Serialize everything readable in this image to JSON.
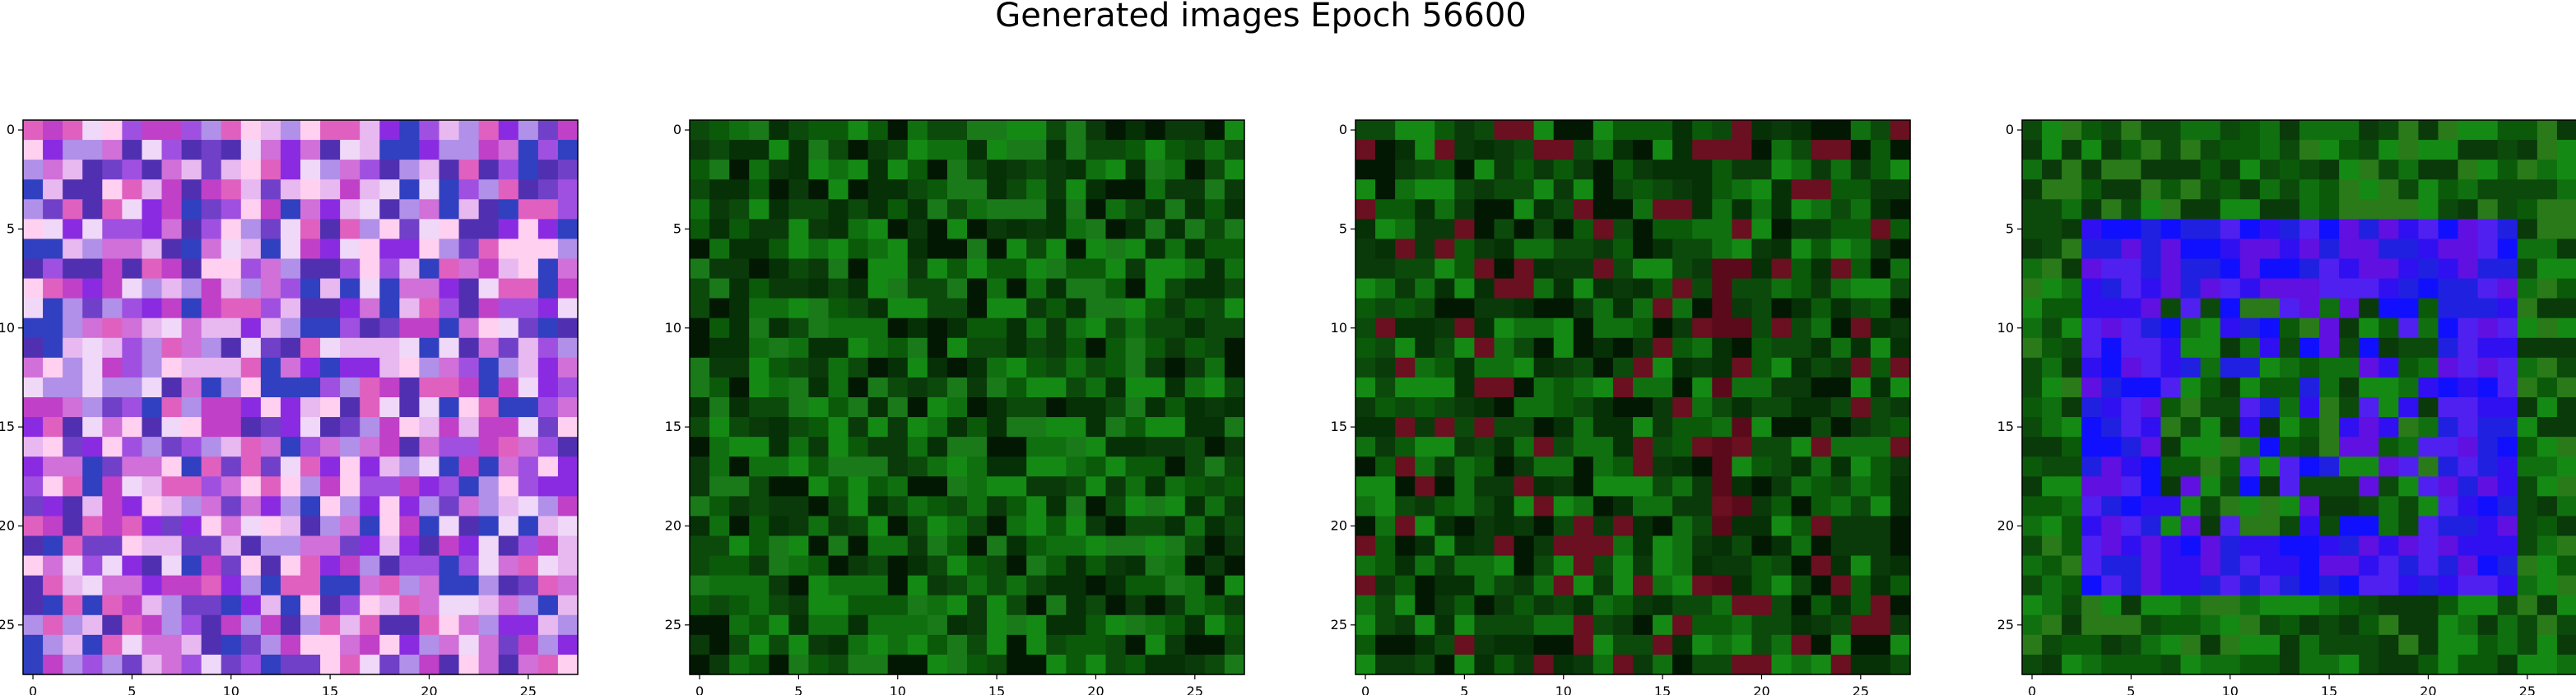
{
  "figure": {
    "title": "Generated images Epoch 56600"
  },
  "chart_data": [
    {
      "type": "heatmap",
      "grid_size": [
        28,
        28
      ],
      "xlim": [
        0,
        27
      ],
      "ylim": [
        27,
        0
      ],
      "x_ticks": [
        0,
        5,
        10,
        15,
        20,
        25
      ],
      "y_ticks": [
        0,
        5,
        10,
        15,
        20,
        25
      ],
      "grid": false,
      "content_description": "RGB image; noisy mosaic of pink, magenta, violet and blue tones"
    },
    {
      "type": "heatmap",
      "grid_size": [
        28,
        28
      ],
      "xlim": [
        0,
        27
      ],
      "ylim": [
        27,
        0
      ],
      "x_ticks": [
        0,
        5,
        10,
        15,
        20,
        25
      ],
      "y_ticks": [
        0,
        5,
        10,
        15,
        20,
        25
      ],
      "grid": false,
      "content_description": "RGB image; dark green noise with a few dark spots"
    },
    {
      "type": "heatmap",
      "grid_size": [
        28,
        28
      ],
      "xlim": [
        0,
        27
      ],
      "ylim": [
        27,
        0
      ],
      "x_ticks": [
        0,
        5,
        10,
        15,
        20,
        25
      ],
      "y_ticks": [
        0,
        5,
        10,
        15,
        20,
        25
      ],
      "grid": false,
      "content_description": "RGB image; dark green noise with a dark red vertical streak"
    },
    {
      "type": "heatmap",
      "grid_size": [
        28,
        28
      ],
      "xlim": [
        0,
        27
      ],
      "ylim": [
        27,
        0
      ],
      "x_ticks": [
        0,
        5,
        10,
        15,
        20,
        25
      ],
      "y_ticks": [
        0,
        5,
        10,
        15,
        20,
        25
      ],
      "grid": false,
      "content_description": "RGB image; green border with blue and violet square frames in the center"
    }
  ],
  "colors": {
    "panel_1": [
      "#e8b8f0",
      "#d070d8",
      "#c040c8",
      "#a050e0",
      "#f0d8f8",
      "#b090e8",
      "#7040c8",
      "#5030b0",
      "#e060c0",
      "#ffd0f0",
      "#8a2be2",
      "#3040c0"
    ],
    "panel_2": [
      "#0a5a0a",
      "#107010",
      "#0a3a0a",
      "#063006",
      "#148a14",
      "#021802",
      "#0c4a0c",
      "#1a7a1a"
    ],
    "panel_3": [
      "#0a5a0a",
      "#107010",
      "#0a3a0a",
      "#063006",
      "#148a14",
      "#021802",
      "#0c4a0c",
      "#6a1020"
    ],
    "panel_4_border": [
      "#0a5a0a",
      "#107010",
      "#0a3a0a",
      "#148a14",
      "#0c4a0c",
      "#2a7a1a"
    ],
    "panel_4_frame": [
      "#1010ff",
      "#3010f0",
      "#6010e0",
      "#2020e0",
      "#5020f0"
    ]
  }
}
